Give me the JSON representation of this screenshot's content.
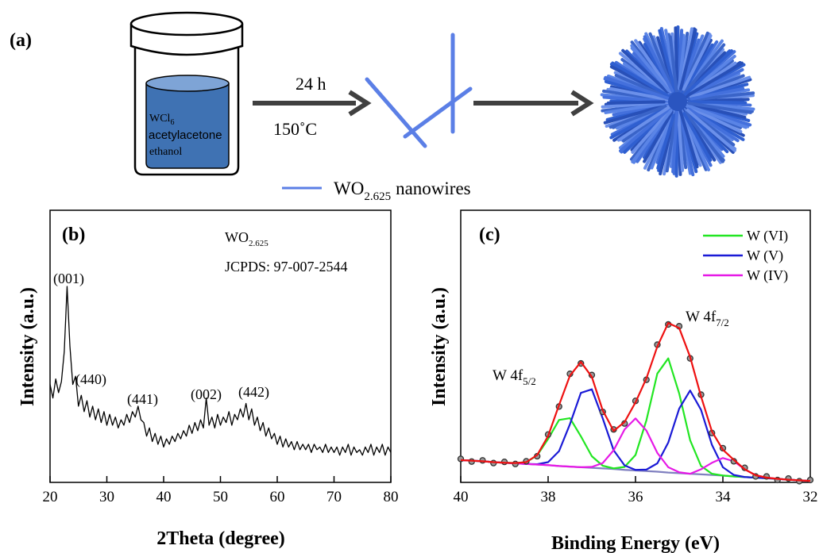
{
  "panel_a": {
    "label": "(a)",
    "reagents": [
      "WCl",
      "acetylacetone",
      "ethanol"
    ],
    "reagent_sub": "6",
    "time": "24 h",
    "temperature": "150˚C",
    "legend": {
      "text": "WO",
      "sub": "2.625",
      "suffix": "nanowires"
    }
  },
  "chart_data": [
    {
      "type": "line",
      "panel_label": "(b)",
      "x_label": "2Theta (degree)",
      "y_label": "Intensity (a.u.)",
      "phase": {
        "text": "WO",
        "sub": "2.625"
      },
      "reference": "JCPDS: 97-007-2544",
      "peak_labels": [
        "(001)",
        "(440)",
        "(441)",
        "(002)",
        "(442)"
      ],
      "x": [
        20,
        20.5,
        21,
        21.5,
        22,
        22.5,
        23,
        23.5,
        24,
        24.5,
        25,
        25.5,
        26,
        26.5,
        27,
        27.5,
        28,
        28.5,
        29,
        29.5,
        30,
        30.5,
        31,
        31.5,
        32,
        32.5,
        33,
        33.5,
        34,
        34.5,
        35,
        35.5,
        36,
        36.5,
        37,
        37.5,
        38,
        38.5,
        39,
        39.5,
        40,
        40.5,
        41,
        41.5,
        42,
        42.5,
        43,
        43.5,
        44,
        44.5,
        45,
        45.5,
        46,
        46.5,
        47,
        47.5,
        48,
        48.5,
        49,
        49.5,
        50,
        50.5,
        51,
        51.5,
        52,
        52.5,
        53,
        53.5,
        54,
        54.5,
        55,
        55.5,
        56,
        56.5,
        57,
        57.5,
        58,
        58.5,
        59,
        59.5,
        60,
        60.5,
        61,
        61.5,
        62,
        62.5,
        63,
        63.5,
        64,
        64.5,
        65,
        65.5,
        66,
        66.5,
        67,
        67.5,
        68,
        68.5,
        69,
        69.5,
        70,
        70.5,
        71,
        71.5,
        72,
        72.5,
        73,
        73.5,
        74,
        74.5,
        75,
        75.5,
        76,
        76.5,
        77,
        77.5,
        78,
        78.5,
        79,
        79.5,
        80
      ],
      "series": [
        {
          "color": "#000000",
          "style": "line",
          "values": [
            36,
            31,
            38,
            33,
            37,
            48,
            72,
            50,
            36,
            39,
            28,
            32,
            26,
            30,
            24,
            28,
            23,
            27,
            22,
            26,
            21,
            25,
            21,
            24,
            20,
            23,
            21,
            25,
            22,
            26,
            24,
            28,
            23,
            22,
            17,
            20,
            15,
            18,
            14,
            17,
            13,
            16,
            14,
            17,
            15,
            18,
            16,
            19,
            17,
            21,
            18,
            22,
            19,
            23,
            20,
            31,
            21,
            24,
            20,
            25,
            21,
            24,
            22,
            26,
            21,
            25,
            23,
            27,
            24,
            29,
            23,
            27,
            21,
            24,
            19,
            22,
            17,
            20,
            16,
            18,
            14,
            17,
            13,
            16,
            13,
            15,
            12,
            15,
            12,
            14,
            12,
            14,
            11,
            14,
            12,
            13,
            11,
            14,
            11,
            13,
            11,
            13,
            10,
            13,
            11,
            14,
            10,
            13,
            11,
            12,
            10,
            13,
            11,
            14,
            10,
            13,
            11,
            14,
            10,
            13,
            11
          ]
        }
      ],
      "xlim": [
        20,
        80
      ],
      "xticks": [
        20,
        30,
        40,
        50,
        60,
        70,
        80
      ],
      "ylim": [
        0,
        100
      ]
    },
    {
      "type": "line",
      "panel_label": "(c)",
      "x_label": "Binding Energy (eV)",
      "y_label": "Intensity (a.u.)",
      "annotations": [
        {
          "text": "W 4f",
          "sub": "5/2"
        },
        {
          "text": "W 4f",
          "sub": "7/2"
        }
      ],
      "x": [
        40,
        39.75,
        39.5,
        39.25,
        39,
        38.75,
        38.5,
        38.25,
        38,
        37.75,
        37.5,
        37.25,
        37,
        36.75,
        36.5,
        36.25,
        36,
        35.75,
        35.5,
        35.25,
        35,
        34.75,
        34.5,
        34.25,
        34,
        33.75,
        33.5,
        33.25,
        33,
        32.75,
        32.5,
        32.25,
        32
      ],
      "series": [
        {
          "color": "#8080c0",
          "style": "line",
          "values": [
            16,
            15.8,
            15.6,
            15.3,
            15.1,
            14.9,
            14.7,
            14.5,
            14.3,
            14,
            13.8,
            13.6,
            13.4,
            13.2,
            13,
            12.7,
            12.5,
            12.3,
            12.1,
            11.8,
            11.6,
            11.4,
            11.2,
            11,
            10.8,
            10.5,
            10.3,
            10.1,
            9.9,
            9.7,
            9.4,
            9.2,
            9
          ]
        },
        {
          "name": "W (VI)",
          "color": "#22e622",
          "style": "line",
          "values": [
            16,
            15.8,
            15.6,
            15.3,
            15.1,
            15.0,
            15.3,
            17.6,
            23.1,
            29.5,
            30.1,
            24.0,
            17.3,
            14.1,
            13.2,
            13.7,
            17.7,
            29.4,
            45.1,
            50.2,
            38.4,
            22.7,
            14.0,
            11.4,
            10.8,
            10.5,
            10.3,
            10.1,
            9.9,
            9.7,
            9.4,
            9.2,
            9
          ]
        },
        {
          "name": "W (V)",
          "color": "#1a1ad6",
          "style": "line",
          "values": [
            16,
            15.8,
            15.6,
            15.3,
            15.1,
            14.9,
            14.7,
            14.6,
            15.3,
            19.0,
            28.1,
            38.6,
            39.8,
            30.0,
            19.3,
            14.2,
            12.7,
            12.8,
            14.9,
            21.9,
            33.3,
            39.4,
            32.9,
            21.1,
            13.6,
            11.0,
            10.3,
            10.1,
            9.9,
            9.7,
            9.4,
            9.2,
            9
          ]
        },
        {
          "name": "W (IV)",
          "color": "#e619e6",
          "style": "line",
          "values": [
            16,
            15.8,
            15.6,
            15.3,
            15.1,
            14.9,
            14.7,
            14.5,
            14.3,
            14,
            13.8,
            13.6,
            13.7,
            15.0,
            19.3,
            26.3,
            30.0,
            25.9,
            18.4,
            13.6,
            11.9,
            11.4,
            12.9,
            15.1,
            16.7,
            15.6,
            12.9,
            10.9,
            10.1,
            9.7,
            9.4,
            9.2,
            9
          ]
        },
        {
          "color": "#333333",
          "style": "scatter",
          "values": [
            16.4,
            15.5,
            15.9,
            15.0,
            15.4,
            14.7,
            15.6,
            17.3,
            24.6,
            34.0,
            45.0,
            48.5,
            44.6,
            32.2,
            26.3,
            28.3,
            35.9,
            43.0,
            54.8,
            61.6,
            61.0,
            50.2,
            38.0,
            25.1,
            20.0,
            15.6,
            13.4,
            10.5,
            10.5,
            9.3,
            9.8,
            8.9,
            9.3
          ]
        },
        {
          "color": "#ee1111",
          "style": "line",
          "values": [
            16,
            15.8,
            15.6,
            15.3,
            15.1,
            15.0,
            15.3,
            17.7,
            24.1,
            34.5,
            44.4,
            49.0,
            44.0,
            32.7,
            25.8,
            28.8,
            35.4,
            43.5,
            54.2,
            62.1,
            60.4,
            50.7,
            37.4,
            25.6,
            19.5,
            16.1,
            12.9,
            10.9,
            10.1,
            9.7,
            9.4,
            9.2,
            9
          ]
        }
      ],
      "xlim": [
        40,
        32
      ],
      "xticks": [
        40,
        38,
        36,
        34,
        32
      ],
      "ylim": [
        8.5,
        100
      ]
    }
  ]
}
